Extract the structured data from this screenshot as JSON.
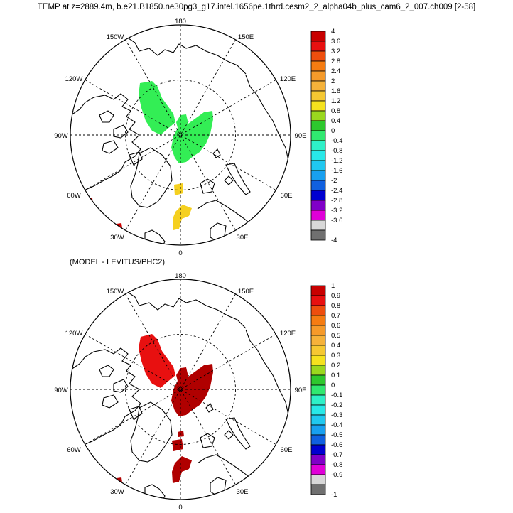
{
  "title": "TEMP at z=2889.4m, b.e21.B1850.ne30pg3_g17.intel.1656pe.1thrd.cesm2_2_alpha04b_plus_cam6_2_007.ch009 [2-58]",
  "subtitle": "(MODEL - LEVITUS/PHC2)",
  "longitude_labels": {
    "top": "180",
    "upper_left": "150W",
    "upper_right": "150E",
    "mid_upper_left": "120W",
    "mid_upper_right": "120E",
    "left": "90W",
    "right": "90E",
    "mid_lower_left": "60W",
    "mid_lower_right": "60E",
    "lower_left": "30W",
    "lower_right": "30E",
    "bottom": "0"
  },
  "colors": {
    "land_outline": "#000000",
    "upper_blob": "#33ee55",
    "lower_blob": "#f5d020",
    "tiny_spot": "#cc0000",
    "diff_dark": "#b00000",
    "diff_bright": "#e81010"
  },
  "map_top": {
    "colorbar_labels": [
      "4",
      "3.6",
      "3.2",
      "2.8",
      "2.4",
      "2",
      "1.6",
      "1.2",
      "0.8",
      "0.4",
      "0",
      "-0.4",
      "-0.8",
      "-1.2",
      "-1.6",
      "-2",
      "-2.4",
      "-2.8",
      "-3.2",
      "-3.6",
      "-4"
    ],
    "colorbar_colors": [
      "#c80000",
      "#e81010",
      "#ee4e0e",
      "#f57c12",
      "#f59a2a",
      "#f5b23a",
      "#f5c832",
      "#f5e21e",
      "#9ad81e",
      "#2ec82e",
      "#30e870",
      "#2ef0c8",
      "#28e8e8",
      "#20c8f0",
      "#18a0f0",
      "#1060e0",
      "#0000d0",
      "#8000c8",
      "#e000d8",
      "#d8d8d8",
      "#707070"
    ]
  },
  "map_bottom": {
    "colorbar_labels": [
      "1",
      "0.9",
      "0.8",
      "0.7",
      "0.6",
      "0.5",
      "0.4",
      "0.3",
      "0.2",
      "0.1",
      "0",
      "-0.1",
      "-0.2",
      "-0.3",
      "-0.4",
      "-0.5",
      "-0.6",
      "-0.7",
      "-0.8",
      "-0.9",
      "-1"
    ],
    "colorbar_colors": [
      "#c80000",
      "#e81010",
      "#ee4e0e",
      "#f57c12",
      "#f59a2a",
      "#f5b23a",
      "#f5c832",
      "#f5e21e",
      "#9ad81e",
      "#2ec82e",
      "#30e870",
      "#2ef0c8",
      "#28e8e8",
      "#20c8f0",
      "#18a0f0",
      "#1060e0",
      "#0000d0",
      "#8000c8",
      "#e000d8",
      "#d8d8d8",
      "#707070"
    ]
  }
}
